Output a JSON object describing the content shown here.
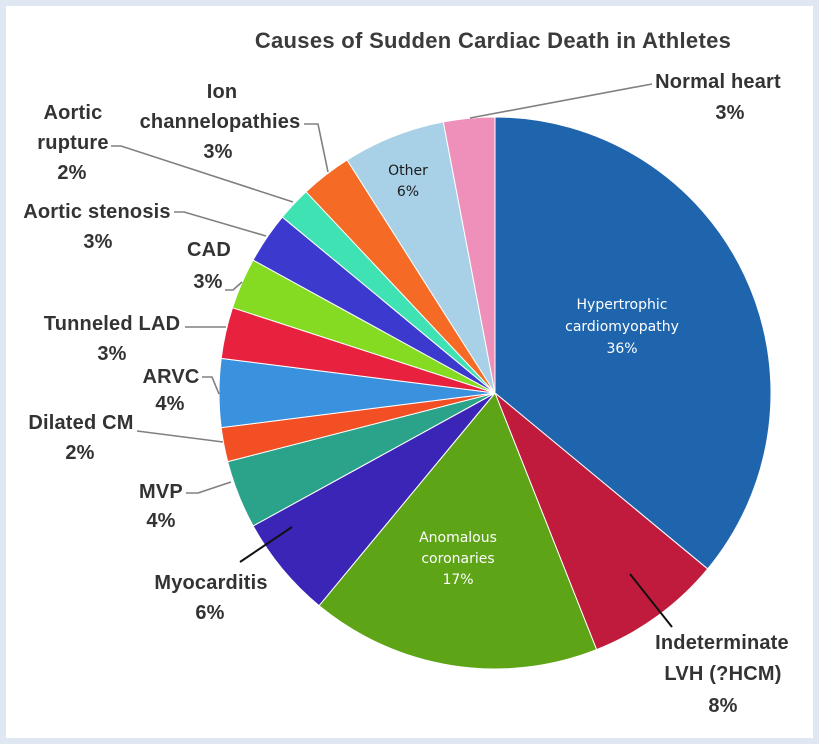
{
  "chart_data": {
    "type": "pie",
    "title": "Causes of Sudden Cardiac Death in Athletes",
    "unit": "%",
    "slices": [
      {
        "lines": [
          "Hypertrophic",
          "cardiomyopathy"
        ],
        "value": 36,
        "pct": "36%",
        "color": "#1f65ad"
      },
      {
        "lines": [
          "Indeterminate",
          "LVH (?HCM)"
        ],
        "value": 8,
        "pct": "8%",
        "color": "#c01b3c"
      },
      {
        "lines": [
          "Anomalous",
          "coronaries"
        ],
        "value": 17,
        "pct": "17%",
        "color": "#5da416"
      },
      {
        "lines": [
          "Myocarditis"
        ],
        "value": 6,
        "pct": "6%",
        "color": "#3a25b6"
      },
      {
        "lines": [
          "MVP"
        ],
        "value": 4,
        "pct": "4%",
        "color": "#2ba38a"
      },
      {
        "lines": [
          "Dilated CM"
        ],
        "value": 2,
        "pct": "2%",
        "color": "#f34f25"
      },
      {
        "lines": [
          "ARVC"
        ],
        "value": 4,
        "pct": "4%",
        "color": "#3a92df"
      },
      {
        "lines": [
          "Tunneled LAD"
        ],
        "value": 3,
        "pct": "3%",
        "color": "#e8213f"
      },
      {
        "lines": [
          "CAD"
        ],
        "value": 3,
        "pct": "3%",
        "color": "#84db22"
      },
      {
        "lines": [
          "Aortic stenosis"
        ],
        "value": 3,
        "pct": "3%",
        "color": "#3c39cf"
      },
      {
        "lines": [
          "Aortic",
          "rupture"
        ],
        "value": 2,
        "pct": "2%",
        "color": "#3fe3b3"
      },
      {
        "lines": [
          "Ion",
          "channelopathies"
        ],
        "value": 3,
        "pct": "3%",
        "color": "#f56b25"
      },
      {
        "lines": [
          "Other"
        ],
        "value": 6,
        "pct": "6%",
        "color": "#a8d0e7"
      },
      {
        "lines": [
          "Normal heart"
        ],
        "value": 3,
        "pct": "3%",
        "color": "#ef90ba"
      }
    ]
  }
}
